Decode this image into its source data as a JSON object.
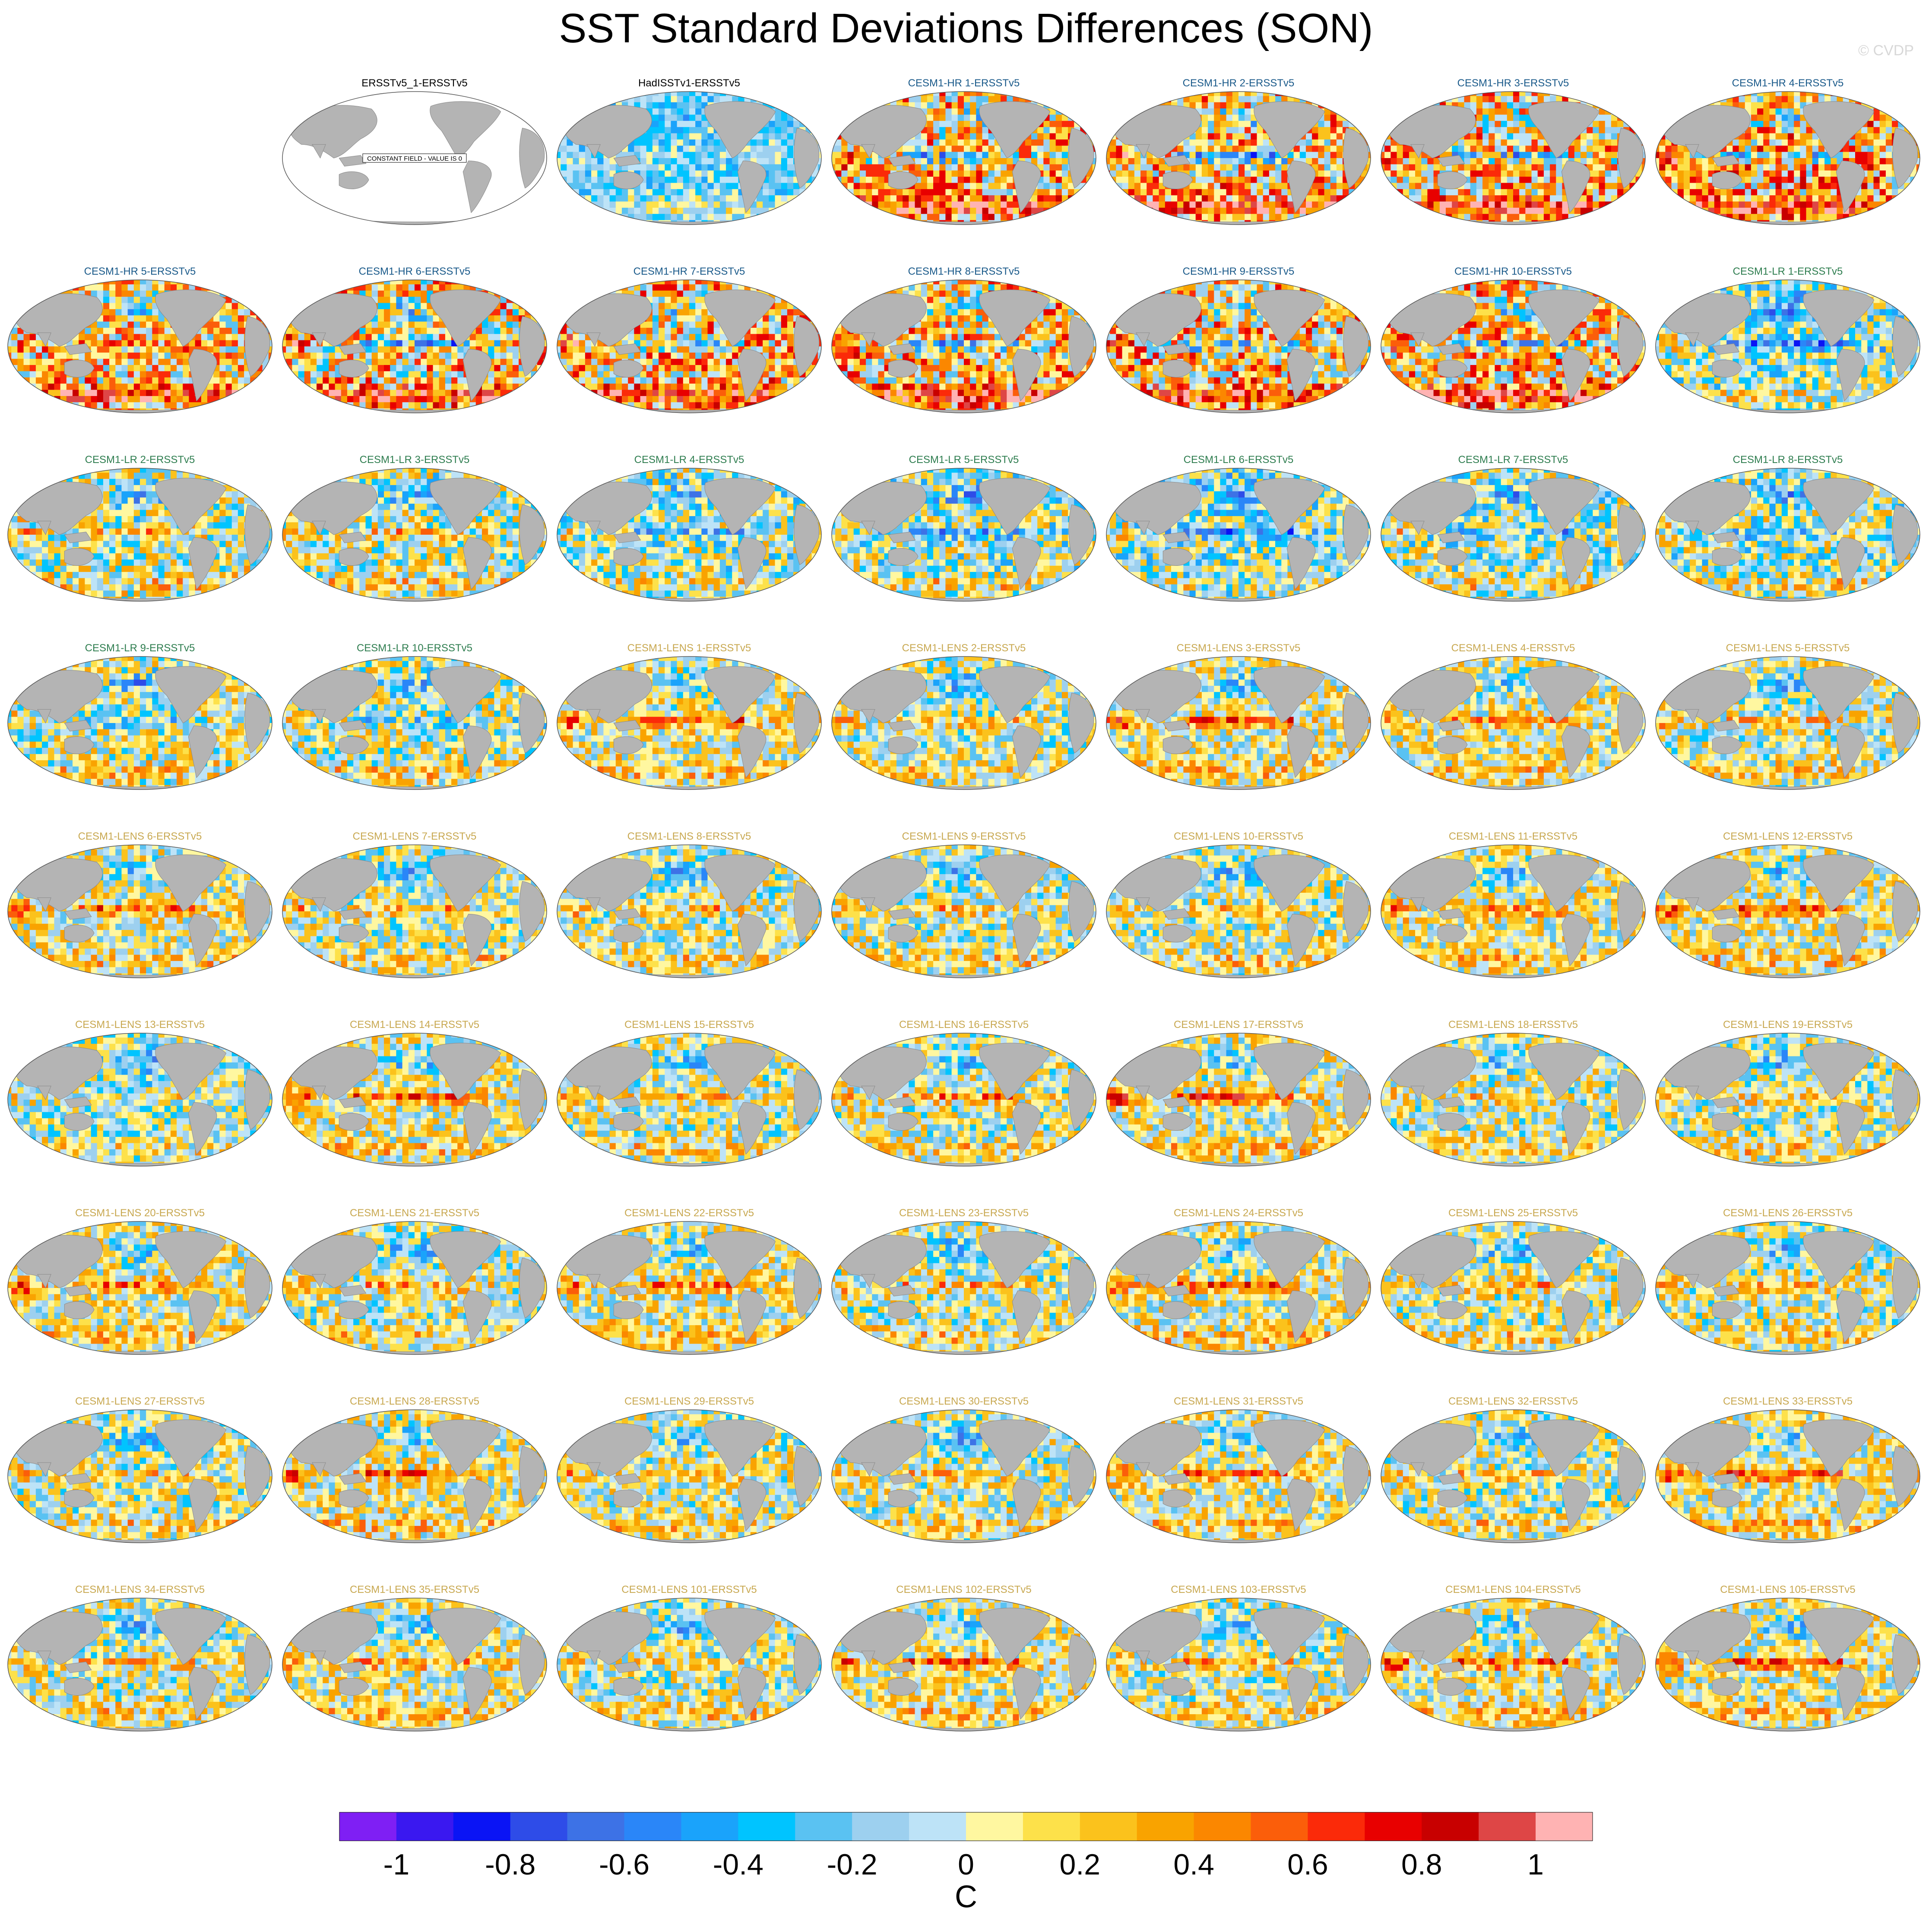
{
  "figure": {
    "title": "SST Standard Deviations Differences (SON)",
    "watermark": "© CVDP",
    "constant_field_note": "CONSTANT FIELD - VALUE IS 0"
  },
  "colors": {
    "land": "#b4b4b4",
    "ocean_zero": "#ffffff",
    "title_obs": "#000000",
    "title_hr": "#1a5a8a",
    "title_lr": "#2e7d4f",
    "title_lens": "#c8a850"
  },
  "chart_data": {
    "type": "heatmap",
    "projection": "robinson",
    "season": "SON",
    "grid": {
      "rows": 9,
      "cols": 7,
      "first_row_offset": 1
    },
    "panels": [
      {
        "title": "ERSSTv5_1-ERSSTv5",
        "group": "obs",
        "constant": true,
        "amp": 0,
        "enso": 0
      },
      {
        "title": "HadISSTv1-ERSSTv5",
        "group": "obs",
        "amp": 0.25,
        "enso": 0.05,
        "bias": -0.2
      },
      {
        "title": "CESM1-HR 1-ERSSTv5",
        "group": "hr",
        "amp": 0.55,
        "enso": -0.6,
        "bias": 0.25
      },
      {
        "title": "CESM1-HR 2-ERSSTv5",
        "group": "hr",
        "amp": 0.55,
        "enso": -0.65,
        "bias": 0.25
      },
      {
        "title": "CESM1-HR 3-ERSSTv5",
        "group": "hr",
        "amp": 0.55,
        "enso": -0.55,
        "bias": 0.25
      },
      {
        "title": "CESM1-HR 4-ERSSTv5",
        "group": "hr",
        "amp": 0.55,
        "enso": -0.5,
        "bias": 0.3
      },
      {
        "title": "CESM1-HR 5-ERSSTv5",
        "group": "hr",
        "amp": 0.5,
        "enso": 0.2,
        "bias": 0.2
      },
      {
        "title": "CESM1-HR 6-ERSSTv5",
        "group": "hr",
        "amp": 0.55,
        "enso": -0.55,
        "bias": 0.2
      },
      {
        "title": "CESM1-HR 7-ERSSTv5",
        "group": "hr",
        "amp": 0.55,
        "enso": -0.45,
        "bias": 0.25
      },
      {
        "title": "CESM1-HR 8-ERSSTv5",
        "group": "hr",
        "amp": 0.55,
        "enso": -0.6,
        "bias": 0.25
      },
      {
        "title": "CESM1-HR 9-ERSSTv5",
        "group": "hr",
        "amp": 0.55,
        "enso": -0.55,
        "bias": 0.25
      },
      {
        "title": "CESM1-HR 10-ERSSTv5",
        "group": "hr",
        "amp": 0.55,
        "enso": -0.5,
        "bias": 0.25
      },
      {
        "title": "CESM1-LR 1-ERSSTv5",
        "group": "lr",
        "amp": 0.4,
        "enso": -0.45,
        "bias": -0.1
      },
      {
        "title": "CESM1-LR 2-ERSSTv5",
        "group": "lr",
        "amp": 0.4,
        "enso": 0.3,
        "bias": 0.0
      },
      {
        "title": "CESM1-LR 3-ERSSTv5",
        "group": "lr",
        "amp": 0.4,
        "enso": 0.25,
        "bias": 0.0
      },
      {
        "title": "CESM1-LR 4-ERSSTv5",
        "group": "lr",
        "amp": 0.4,
        "enso": -0.3,
        "bias": -0.05
      },
      {
        "title": "CESM1-LR 5-ERSSTv5",
        "group": "lr",
        "amp": 0.4,
        "enso": -0.35,
        "bias": -0.05
      },
      {
        "title": "CESM1-LR 6-ERSSTv5",
        "group": "lr",
        "amp": 0.4,
        "enso": -0.4,
        "bias": -0.1
      },
      {
        "title": "CESM1-LR 7-ERSSTv5",
        "group": "lr",
        "amp": 0.4,
        "enso": -0.35,
        "bias": -0.05
      },
      {
        "title": "CESM1-LR 8-ERSSTv5",
        "group": "lr",
        "amp": 0.4,
        "enso": -0.3,
        "bias": -0.05
      },
      {
        "title": "CESM1-LR 9-ERSSTv5",
        "group": "lr",
        "amp": 0.4,
        "enso": -0.2,
        "bias": 0.0
      },
      {
        "title": "CESM1-LR 10-ERSSTv5",
        "group": "lr",
        "amp": 0.4,
        "enso": -0.25,
        "bias": 0.0
      },
      {
        "title": "CESM1-LENS 1-ERSSTv5",
        "group": "lens",
        "amp": 0.35,
        "enso": 0.55,
        "bias": 0.05
      },
      {
        "title": "CESM1-LENS 2-ERSSTv5",
        "group": "lens",
        "amp": 0.35,
        "enso": 0.3,
        "bias": 0.0
      },
      {
        "title": "CESM1-LENS 3-ERSSTv5",
        "group": "lens",
        "amp": 0.35,
        "enso": 0.6,
        "bias": 0.05
      },
      {
        "title": "CESM1-LENS 4-ERSSTv5",
        "group": "lens",
        "amp": 0.35,
        "enso": 0.35,
        "bias": 0.05
      },
      {
        "title": "CESM1-LENS 5-ERSSTv5",
        "group": "lens",
        "amp": 0.35,
        "enso": 0.3,
        "bias": 0.0
      },
      {
        "title": "CESM1-LENS 6-ERSSTv5",
        "group": "lens",
        "amp": 0.35,
        "enso": 0.5,
        "bias": 0.05
      },
      {
        "title": "CESM1-LENS 7-ERSSTv5",
        "group": "lens",
        "amp": 0.35,
        "enso": 0.35,
        "bias": 0.0
      },
      {
        "title": "CESM1-LENS 8-ERSSTv5",
        "group": "lens",
        "amp": 0.35,
        "enso": 0.3,
        "bias": 0.0
      },
      {
        "title": "CESM1-LENS 9-ERSSTv5",
        "group": "lens",
        "amp": 0.35,
        "enso": 0.3,
        "bias": 0.0
      },
      {
        "title": "CESM1-LENS 10-ERSSTv5",
        "group": "lens",
        "amp": 0.35,
        "enso": 0.25,
        "bias": 0.0
      },
      {
        "title": "CESM1-LENS 11-ERSSTv5",
        "group": "lens",
        "amp": 0.35,
        "enso": 0.4,
        "bias": 0.05
      },
      {
        "title": "CESM1-LENS 12-ERSSTv5",
        "group": "lens",
        "amp": 0.35,
        "enso": 0.55,
        "bias": 0.05
      },
      {
        "title": "CESM1-LENS 13-ERSSTv5",
        "group": "lens",
        "amp": 0.35,
        "enso": 0.2,
        "bias": -0.05
      },
      {
        "title": "CESM1-LENS 14-ERSSTv5",
        "group": "lens",
        "amp": 0.35,
        "enso": 0.6,
        "bias": 0.05
      },
      {
        "title": "CESM1-LENS 15-ERSSTv5",
        "group": "lens",
        "amp": 0.35,
        "enso": 0.3,
        "bias": 0.0
      },
      {
        "title": "CESM1-LENS 16-ERSSTv5",
        "group": "lens",
        "amp": 0.35,
        "enso": 0.45,
        "bias": 0.0
      },
      {
        "title": "CESM1-LENS 17-ERSSTv5",
        "group": "lens",
        "amp": 0.35,
        "enso": 0.7,
        "bias": 0.05
      },
      {
        "title": "CESM1-LENS 18-ERSSTv5",
        "group": "lens",
        "amp": 0.35,
        "enso": 0.3,
        "bias": 0.0
      },
      {
        "title": "CESM1-LENS 19-ERSSTv5",
        "group": "lens",
        "amp": 0.35,
        "enso": 0.25,
        "bias": 0.0
      },
      {
        "title": "CESM1-LENS 20-ERSSTv5",
        "group": "lens",
        "amp": 0.35,
        "enso": 0.5,
        "bias": 0.05
      },
      {
        "title": "CESM1-LENS 21-ERSSTv5",
        "group": "lens",
        "amp": 0.35,
        "enso": 0.35,
        "bias": 0.0
      },
      {
        "title": "CESM1-LENS 22-ERSSTv5",
        "group": "lens",
        "amp": 0.35,
        "enso": 0.45,
        "bias": 0.05
      },
      {
        "title": "CESM1-LENS 23-ERSSTv5",
        "group": "lens",
        "amp": 0.35,
        "enso": 0.35,
        "bias": 0.0
      },
      {
        "title": "CESM1-LENS 24-ERSSTv5",
        "group": "lens",
        "amp": 0.35,
        "enso": 0.55,
        "bias": 0.05
      },
      {
        "title": "CESM1-LENS 25-ERSSTv5",
        "group": "lens",
        "amp": 0.35,
        "enso": 0.3,
        "bias": 0.0
      },
      {
        "title": "CESM1-LENS 26-ERSSTv5",
        "group": "lens",
        "amp": 0.35,
        "enso": 0.3,
        "bias": 0.0
      },
      {
        "title": "CESM1-LENS 27-ERSSTv5",
        "group": "lens",
        "amp": 0.35,
        "enso": 0.25,
        "bias": 0.0
      },
      {
        "title": "CESM1-LENS 28-ERSSTv5",
        "group": "lens",
        "amp": 0.35,
        "enso": 0.55,
        "bias": 0.05
      },
      {
        "title": "CESM1-LENS 29-ERSSTv5",
        "group": "lens",
        "amp": 0.35,
        "enso": 0.3,
        "bias": 0.0
      },
      {
        "title": "CESM1-LENS 30-ERSSTv5",
        "group": "lens",
        "amp": 0.35,
        "enso": 0.25,
        "bias": 0.0
      },
      {
        "title": "CESM1-LENS 31-ERSSTv5",
        "group": "lens",
        "amp": 0.35,
        "enso": 0.4,
        "bias": 0.05
      },
      {
        "title": "CESM1-LENS 32-ERSSTv5",
        "group": "lens",
        "amp": 0.35,
        "enso": 0.25,
        "bias": 0.0
      },
      {
        "title": "CESM1-LENS 33-ERSSTv5",
        "group": "lens",
        "amp": 0.35,
        "enso": 0.6,
        "bias": 0.05
      },
      {
        "title": "CESM1-LENS 34-ERSSTv5",
        "group": "lens",
        "amp": 0.35,
        "enso": 0.3,
        "bias": 0.0
      },
      {
        "title": "CESM1-LENS 35-ERSSTv5",
        "group": "lens",
        "amp": 0.35,
        "enso": 0.35,
        "bias": 0.05
      },
      {
        "title": "CESM1-LENS 101-ERSSTv5",
        "group": "lens",
        "amp": 0.35,
        "enso": 0.2,
        "bias": 0.0
      },
      {
        "title": "CESM1-LENS 102-ERSSTv5",
        "group": "lens",
        "amp": 0.35,
        "enso": 0.5,
        "bias": 0.05
      },
      {
        "title": "CESM1-LENS 103-ERSSTv5",
        "group": "lens",
        "amp": 0.35,
        "enso": 0.35,
        "bias": 0.0
      },
      {
        "title": "CESM1-LENS 104-ERSSTv5",
        "group": "lens",
        "amp": 0.35,
        "enso": 0.55,
        "bias": 0.05
      },
      {
        "title": "CESM1-LENS 105-ERSSTv5",
        "group": "lens",
        "amp": 0.35,
        "enso": 0.55,
        "bias": 0.05
      }
    ],
    "colorbar": {
      "unit": "C",
      "levels": [
        -1,
        -0.9,
        -0.8,
        -0.7,
        -0.6,
        -0.5,
        -0.4,
        -0.3,
        -0.2,
        -0.1,
        0,
        0.1,
        0.2,
        0.3,
        0.4,
        0.5,
        0.6,
        0.7,
        0.8,
        0.9,
        1
      ],
      "tick_labels": [
        "-1",
        "-0.8",
        "-0.6",
        "-0.4",
        "-0.2",
        "0",
        "0.2",
        "0.4",
        "0.6",
        "0.8",
        "1"
      ],
      "colors": [
        "#7f1ff4",
        "#3a18f0",
        "#0a14f5",
        "#2e4ce8",
        "#3d72e6",
        "#2a86f8",
        "#1aa3fb",
        "#00c4ff",
        "#5ac2f2",
        "#9dd0ef",
        "#bde3f7",
        "#fff7a0",
        "#fde14a",
        "#fbc21c",
        "#f9a300",
        "#fb8700",
        "#fb5e0a",
        "#fb2a09",
        "#e80000",
        "#c80000",
        "#de4646",
        "#ffb3b3"
      ]
    }
  }
}
